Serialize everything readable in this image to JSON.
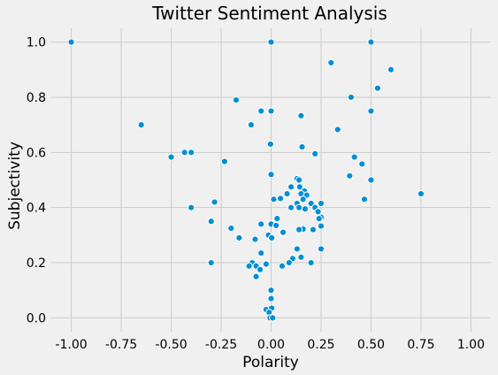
{
  "chart_data": {
    "type": "scatter",
    "title": "Twitter Sentiment Analysis",
    "xlabel": "Polarity",
    "ylabel": "Subjectivity",
    "xlim": [
      -1.1,
      1.1
    ],
    "ylim": [
      -0.05,
      1.05
    ],
    "xticks": [
      -1.0,
      -0.75,
      -0.5,
      -0.25,
      0.0,
      0.25,
      0.5,
      0.75,
      1.0
    ],
    "xtick_labels": [
      "-1.00",
      "-0.75",
      "-0.50",
      "-0.25",
      "0.00",
      "0.25",
      "0.50",
      "0.75",
      "1.00"
    ],
    "yticks": [
      0.0,
      0.2,
      0.4,
      0.6,
      0.8,
      1.0
    ],
    "ytick_labels": [
      "0.0",
      "0.2",
      "0.4",
      "0.6",
      "0.8",
      "1.0"
    ],
    "grid": true,
    "marker_color": "#008fd5",
    "background": "#f0f0f0",
    "points": [
      {
        "x": -1.0,
        "y": 1.0
      },
      {
        "x": 0.0,
        "y": 1.0
      },
      {
        "x": 0.5,
        "y": 1.0
      },
      {
        "x": 0.3,
        "y": 0.925
      },
      {
        "x": 0.6,
        "y": 0.9
      },
      {
        "x": 0.533,
        "y": 0.833
      },
      {
        "x": 0.4,
        "y": 0.8
      },
      {
        "x": -0.175,
        "y": 0.79
      },
      {
        "x": -0.05,
        "y": 0.75
      },
      {
        "x": 0.0,
        "y": 0.75
      },
      {
        "x": 0.5,
        "y": 0.75
      },
      {
        "x": 0.15,
        "y": 0.733
      },
      {
        "x": -0.65,
        "y": 0.7
      },
      {
        "x": -0.1,
        "y": 0.7
      },
      {
        "x": 0.333,
        "y": 0.683
      },
      {
        "x": -0.003,
        "y": 0.63
      },
      {
        "x": 0.155,
        "y": 0.62
      },
      {
        "x": -0.433,
        "y": 0.6
      },
      {
        "x": -0.4,
        "y": 0.6
      },
      {
        "x": 0.22,
        "y": 0.595
      },
      {
        "x": -0.5,
        "y": 0.583
      },
      {
        "x": 0.417,
        "y": 0.583
      },
      {
        "x": -0.233,
        "y": 0.567
      },
      {
        "x": 0.455,
        "y": 0.558
      },
      {
        "x": 0.0,
        "y": 0.52
      },
      {
        "x": 0.393,
        "y": 0.515
      },
      {
        "x": 0.13,
        "y": 0.505
      },
      {
        "x": 0.5,
        "y": 0.5
      },
      {
        "x": 0.14,
        "y": 0.5
      },
      {
        "x": 0.1,
        "y": 0.475
      },
      {
        "x": 0.143,
        "y": 0.475
      },
      {
        "x": 0.167,
        "y": 0.46
      },
      {
        "x": 0.75,
        "y": 0.45
      },
      {
        "x": 0.15,
        "y": 0.45
      },
      {
        "x": 0.08,
        "y": 0.45
      },
      {
        "x": 0.178,
        "y": 0.445
      },
      {
        "x": 0.16,
        "y": 0.43
      },
      {
        "x": 0.047,
        "y": 0.433
      },
      {
        "x": 0.013,
        "y": 0.43
      },
      {
        "x": 0.467,
        "y": 0.43
      },
      {
        "x": -0.283,
        "y": 0.42
      },
      {
        "x": 0.2,
        "y": 0.415
      },
      {
        "x": 0.13,
        "y": 0.415
      },
      {
        "x": 0.25,
        "y": 0.415
      },
      {
        "x": 0.1,
        "y": 0.4
      },
      {
        "x": -0.4,
        "y": 0.4
      },
      {
        "x": 0.14,
        "y": 0.4
      },
      {
        "x": 0.22,
        "y": 0.4
      },
      {
        "x": 0.17,
        "y": 0.395
      },
      {
        "x": 0.235,
        "y": 0.385
      },
      {
        "x": 0.25,
        "y": 0.365
      },
      {
        "x": 0.24,
        "y": 0.36
      },
      {
        "x": 0.03,
        "y": 0.36
      },
      {
        "x": -0.3,
        "y": 0.35
      },
      {
        "x": -0.05,
        "y": 0.34
      },
      {
        "x": 0.0,
        "y": 0.34
      },
      {
        "x": 0.025,
        "y": 0.335
      },
      {
        "x": 0.25,
        "y": 0.333
      },
      {
        "x": -0.2,
        "y": 0.325
      },
      {
        "x": 0.16,
        "y": 0.322
      },
      {
        "x": 0.14,
        "y": 0.32
      },
      {
        "x": 0.21,
        "y": 0.32
      },
      {
        "x": 0.06,
        "y": 0.31
      },
      {
        "x": -0.013,
        "y": 0.3
      },
      {
        "x": -0.16,
        "y": 0.29
      },
      {
        "x": -0.08,
        "y": 0.285
      },
      {
        "x": 0.003,
        "y": 0.29
      },
      {
        "x": 0.25,
        "y": 0.25
      },
      {
        "x": 0.13,
        "y": 0.25
      },
      {
        "x": -0.05,
        "y": 0.235
      },
      {
        "x": 0.15,
        "y": 0.22
      },
      {
        "x": 0.108,
        "y": 0.215
      },
      {
        "x": -0.3,
        "y": 0.2
      },
      {
        "x": -0.095,
        "y": 0.2
      },
      {
        "x": 0.09,
        "y": 0.2
      },
      {
        "x": 0.2,
        "y": 0.2
      },
      {
        "x": -0.025,
        "y": 0.195
      },
      {
        "x": -0.11,
        "y": 0.188
      },
      {
        "x": 0.055,
        "y": 0.188
      },
      {
        "x": -0.075,
        "y": 0.188
      },
      {
        "x": -0.055,
        "y": 0.175
      },
      {
        "x": -0.075,
        "y": 0.15
      },
      {
        "x": 0.0,
        "y": 0.1
      },
      {
        "x": 0.0,
        "y": 0.07
      },
      {
        "x": -0.025,
        "y": 0.03
      },
      {
        "x": 0.003,
        "y": 0.035
      },
      {
        "x": -0.01,
        "y": 0.02
      },
      {
        "x": -0.005,
        "y": 0.0
      },
      {
        "x": 0.008,
        "y": 0.0
      }
    ]
  }
}
